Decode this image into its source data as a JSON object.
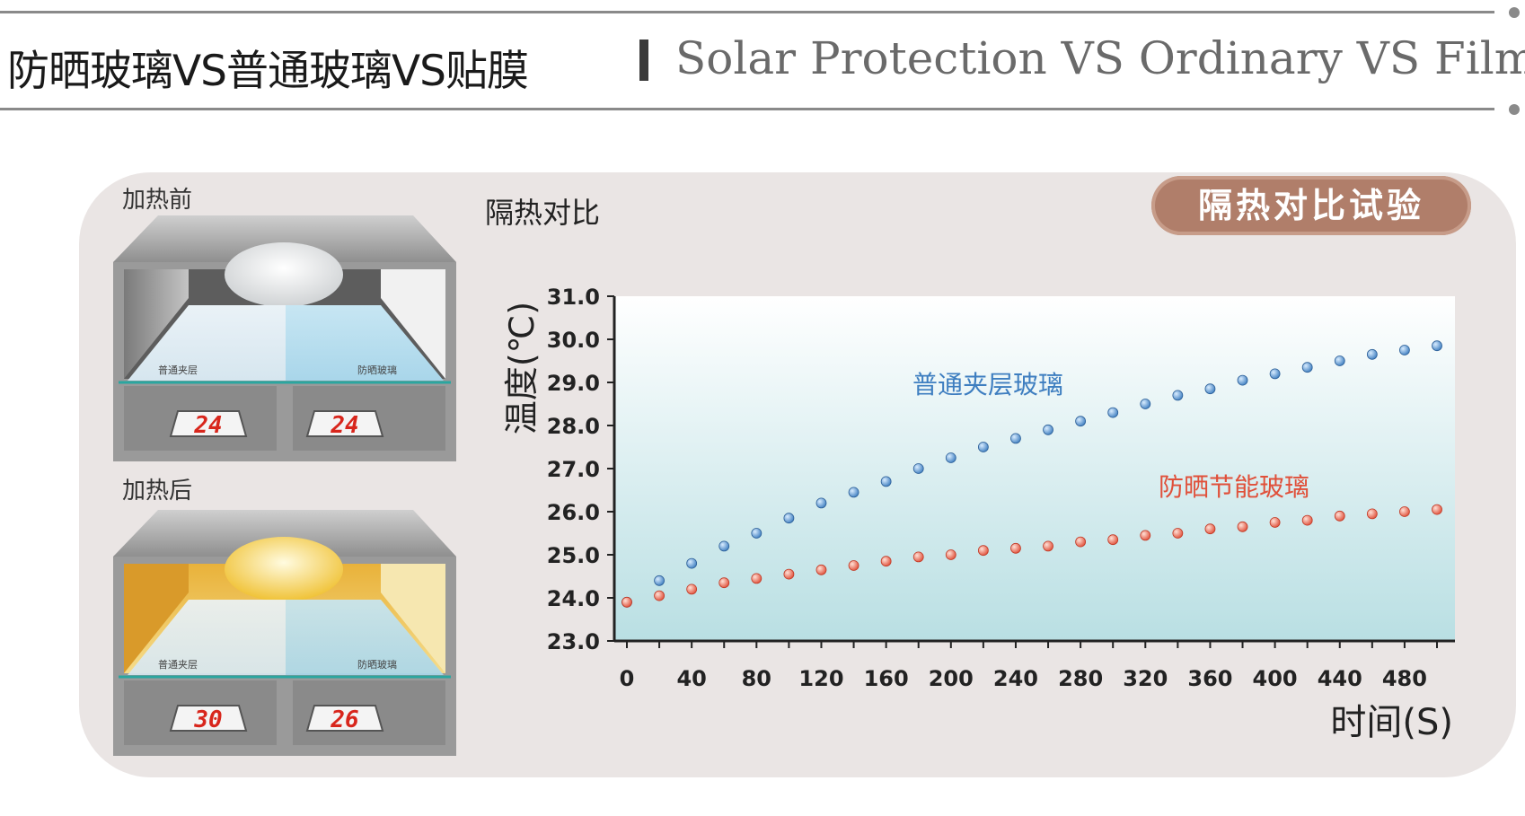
{
  "header": {
    "title_cn": "防晒玻璃VS普通玻璃VS贴膜",
    "title_en": "Solar Protection VS Ordinary VS Film"
  },
  "badge": "隔热对比试验",
  "chart_title": "隔热对比",
  "illustrations": {
    "before": {
      "label": "加热前",
      "left_glass": "普通夹层",
      "right_glass": "防晒玻璃",
      "left_temp": "24",
      "right_temp": "24"
    },
    "after": {
      "label": "加热后",
      "left_glass": "普通夹层",
      "right_glass": "防晒玻璃",
      "left_temp": "30",
      "right_temp": "26"
    }
  },
  "colors": {
    "ordinary": "#3e7ec0",
    "solar": "#e0503a",
    "badge": "#b07e6a"
  },
  "chart_data": {
    "type": "scatter",
    "xlabel": "时间(S)",
    "ylabel": "温度(℃)",
    "xlim": [
      0,
      500
    ],
    "ylim": [
      23.0,
      31.0
    ],
    "xticks": [
      0,
      40,
      80,
      120,
      160,
      200,
      240,
      280,
      320,
      360,
      400,
      440,
      480
    ],
    "yticks": [
      "23.0",
      "24.0",
      "25.0",
      "26.0",
      "27.0",
      "28.0",
      "29.0",
      "30.0",
      "31.0"
    ],
    "series": [
      {
        "name": "普通夹层玻璃",
        "x": [
          0,
          20,
          40,
          60,
          80,
          100,
          120,
          140,
          160,
          180,
          200,
          220,
          240,
          260,
          280,
          300,
          320,
          340,
          360,
          380,
          400,
          420,
          440,
          460,
          480,
          500
        ],
        "y": [
          23.9,
          24.4,
          24.8,
          25.2,
          25.5,
          25.85,
          26.2,
          26.45,
          26.7,
          27.0,
          27.25,
          27.5,
          27.7,
          27.9,
          28.1,
          28.3,
          28.5,
          28.7,
          28.85,
          29.05,
          29.2,
          29.35,
          29.5,
          29.65,
          29.75,
          29.85
        ]
      },
      {
        "name": "防晒节能玻璃",
        "x": [
          0,
          20,
          40,
          60,
          80,
          100,
          120,
          140,
          160,
          180,
          200,
          220,
          240,
          260,
          280,
          300,
          320,
          340,
          360,
          380,
          400,
          420,
          440,
          460,
          480,
          500
        ],
        "y": [
          23.9,
          24.05,
          24.2,
          24.35,
          24.45,
          24.55,
          24.65,
          24.75,
          24.85,
          24.95,
          25.0,
          25.1,
          25.15,
          25.2,
          25.3,
          25.35,
          25.45,
          25.5,
          25.6,
          25.65,
          25.75,
          25.8,
          25.9,
          25.95,
          26.0,
          26.05
        ]
      }
    ]
  }
}
